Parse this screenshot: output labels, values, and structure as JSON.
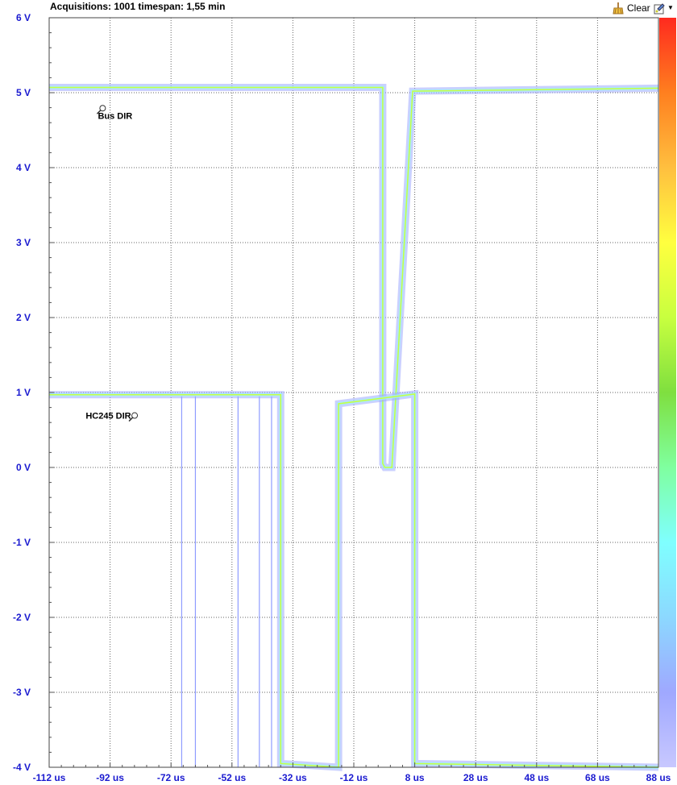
{
  "toolbar": {
    "acquisitions_label": "Acquisitions: 1001 timespan: 1,55 min",
    "clear_label": "Clear",
    "clear_icon": "broom-icon",
    "settings_icon": "settings-dropdown-icon"
  },
  "chart_data": {
    "type": "line",
    "style": "persistence (color-graded density)",
    "x_unit": "us",
    "y_unit": "V",
    "xlim": [
      -112,
      88
    ],
    "ylim": [
      -4,
      6
    ],
    "x_ticks": [
      "-112 us",
      "-92 us",
      "-72 us",
      "-52 us",
      "-32 us",
      "-12 us",
      "8 us",
      "28 us",
      "48 us",
      "68 us",
      "88 us"
    ],
    "y_ticks": [
      "6 V",
      "5 V",
      "4 V",
      "3 V",
      "2 V",
      "1 V",
      "0 V",
      "-1 V",
      "-2 V",
      "-3 V",
      "-4 V"
    ],
    "grid": true,
    "colorbar": {
      "colors": [
        "#c8c8ff",
        "#9fa8ff",
        "#8cd8ff",
        "#7fffff",
        "#7fff9f",
        "#7fdf3f",
        "#c8ff3f",
        "#ffff3f",
        "#ffbf3f",
        "#ff7f1f",
        "#ff2a1f"
      ]
    },
    "annotations": [
      {
        "text": "Bus DIR",
        "x": -96,
        "y": 4.65
      },
      {
        "text": "HC245 DIR",
        "x": -100,
        "y": 0.65
      }
    ],
    "series": [
      {
        "color": "#9faaff",
        "x": [
          -112,
          -2.5,
          -2.5,
          -1.8,
          0.5,
          7.3,
          7.3,
          88
        ],
        "y": [
          5.07,
          5.07,
          0.05,
          0.0,
          0.0,
          5.02,
          5.02,
          5.06
        ]
      },
      {
        "color": "#9faaff",
        "x": [
          -112,
          -36,
          -36,
          -17,
          -17,
          8,
          8,
          88
        ],
        "y": [
          0.97,
          0.97,
          -3.95,
          -4.0,
          0.85,
          0.98,
          -3.95,
          -4.0
        ]
      }
    ],
    "glitches": [
      {
        "x": -68.5,
        "y_from": 0.95,
        "y_to": -4.0
      },
      {
        "x": -64,
        "y_from": 0.95,
        "y_to": -4.0
      },
      {
        "x": -50,
        "y_from": 0.95,
        "y_to": -4.0
      },
      {
        "x": -43,
        "y_from": 0.95,
        "y_to": -4.0
      },
      {
        "x": -39,
        "y_from": 0.95,
        "y_to": -4.0
      }
    ]
  }
}
